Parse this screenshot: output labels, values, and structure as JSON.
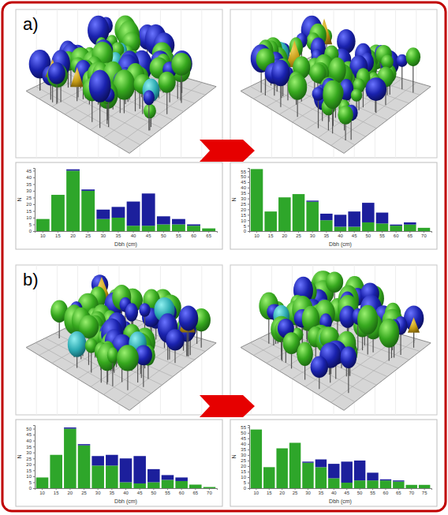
{
  "panel_labels": [
    "a)",
    "b)"
  ],
  "chart_data": [
    {
      "type": "bar",
      "stacked": true,
      "grid": false,
      "x_label": "Dbh (cm)",
      "y_label": "N",
      "categories": [
        "10",
        "15",
        "20",
        "25",
        "30",
        "35",
        "40",
        "45",
        "50",
        "55",
        "60",
        "65"
      ],
      "series": [
        {
          "color": "#2ea62a",
          "values": [
            9,
            27,
            45,
            30,
            9,
            10,
            4,
            4,
            5,
            5,
            4,
            2
          ]
        },
        {
          "color": "#1c1f9c",
          "values": [
            0,
            0,
            1,
            1,
            7,
            8,
            18,
            24,
            6,
            4,
            1,
            0
          ]
        }
      ],
      "ylim": [
        0,
        47
      ],
      "yticks": [
        0,
        5,
        10,
        15,
        20,
        25,
        30,
        35,
        40,
        45
      ]
    },
    {
      "type": "bar",
      "stacked": true,
      "grid": false,
      "x_label": "Dbh (cm)",
      "y_label": "N",
      "categories": [
        "10",
        "15",
        "20",
        "25",
        "30",
        "35",
        "40",
        "45",
        "50",
        "55",
        "60",
        "65",
        "70"
      ],
      "series": [
        {
          "color": "#2ea62a",
          "values": [
            57,
            18,
            31,
            34,
            27,
            10,
            4,
            4,
            8,
            7,
            5,
            6,
            3
          ]
        },
        {
          "color": "#1c1f9c",
          "values": [
            0,
            0,
            0,
            0,
            1,
            6,
            11,
            14,
            18,
            10,
            1,
            2,
            0
          ]
        }
      ],
      "ylim": [
        0,
        58
      ],
      "yticks": [
        0,
        5,
        10,
        15,
        20,
        25,
        30,
        35,
        40,
        45,
        50,
        55
      ]
    },
    {
      "type": "bar",
      "stacked": true,
      "grid": false,
      "x_label": "Dbh (cm)",
      "y_label": "N",
      "categories": [
        "10",
        "15",
        "20",
        "25",
        "30",
        "35",
        "40",
        "45",
        "50",
        "55",
        "60",
        "65",
        "70"
      ],
      "series": [
        {
          "color": "#2ea62a",
          "values": [
            9,
            28,
            50,
            36,
            19,
            19,
            5,
            4,
            5,
            7,
            6,
            3,
            1
          ]
        },
        {
          "color": "#1c1f9c",
          "values": [
            0,
            0,
            1,
            1,
            8,
            9,
            20,
            23,
            11,
            4,
            3,
            0,
            0
          ]
        }
      ],
      "ylim": [
        0,
        53
      ],
      "yticks": [
        0,
        5,
        10,
        15,
        20,
        25,
        30,
        35,
        40,
        45,
        50
      ]
    },
    {
      "type": "bar",
      "stacked": true,
      "grid": false,
      "x_label": "Dbh (cm)",
      "y_label": "N",
      "categories": [
        "10",
        "15",
        "20",
        "25",
        "30",
        "35",
        "40",
        "45",
        "50",
        "55",
        "60",
        "65",
        "70",
        "75"
      ],
      "series": [
        {
          "color": "#2ea62a",
          "values": [
            53,
            19,
            36,
            41,
            23,
            19,
            9,
            5,
            7,
            7,
            7,
            6,
            3,
            3
          ]
        },
        {
          "color": "#1c1f9c",
          "values": [
            0,
            0,
            0,
            0,
            1,
            7,
            13,
            19,
            18,
            7,
            1,
            1,
            0,
            0
          ]
        }
      ],
      "ylim": [
        0,
        57
      ],
      "yticks": [
        0,
        5,
        10,
        15,
        20,
        25,
        30,
        35,
        40,
        45,
        50,
        55
      ]
    }
  ]
}
